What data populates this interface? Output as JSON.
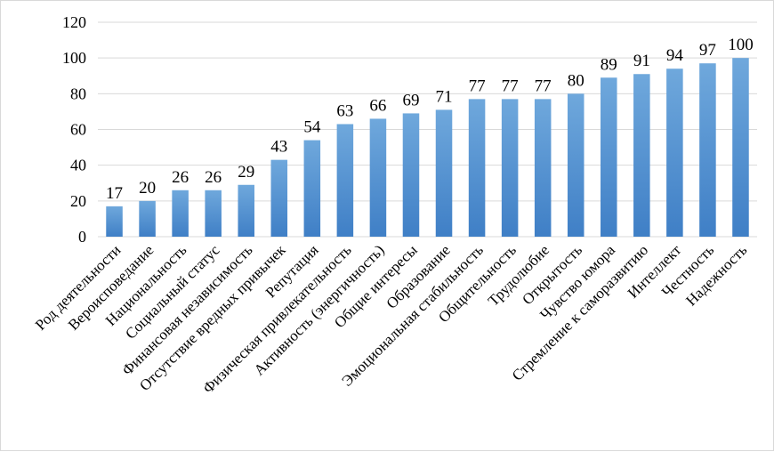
{
  "chart_data": {
    "type": "bar",
    "title": "",
    "xlabel": "",
    "ylabel": "",
    "ylim": [
      0,
      120
    ],
    "yticks": [
      0,
      20,
      40,
      60,
      80,
      100,
      120
    ],
    "grid": true,
    "legend": "none",
    "bar_color_top": "#6fa8dc",
    "bar_color_bottom": "#3f7fc6",
    "gridline_color": "#d9d9d9",
    "categories": [
      "Род деятельности",
      "Вероисповедание",
      "Национальность",
      "Социальный статус",
      "Финансовая независимость",
      "Отсутствие вредных привычек",
      "Репутация",
      "Физическая привлекательность",
      "Активность (энергичность)",
      "Общие интересы",
      "Образование",
      "Эмоциональная стабильность",
      "Общительность",
      "Трудолюбие",
      "Открытость",
      "Чувство юмора",
      "Стремление к саморазвитию",
      "Интеллект",
      "Честность",
      "Надежность"
    ],
    "values": [
      17,
      20,
      26,
      26,
      29,
      43,
      54,
      63,
      66,
      69,
      71,
      77,
      77,
      77,
      80,
      89,
      91,
      94,
      97,
      100
    ]
  }
}
